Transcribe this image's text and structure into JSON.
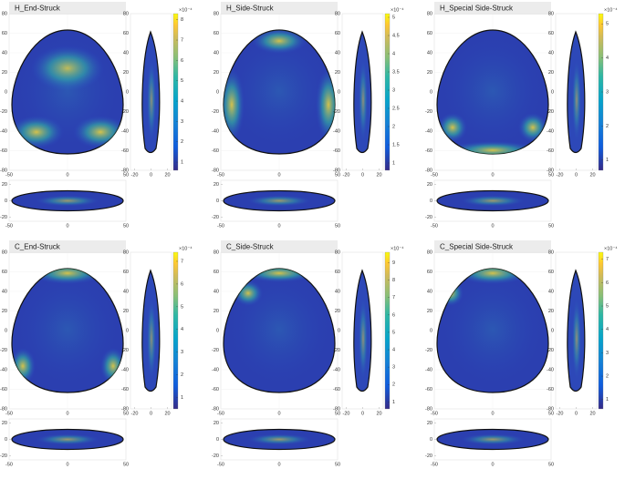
{
  "panels": [
    {
      "title": "H_End-Struck",
      "colorbar": {
        "label": "×10⁻⁴",
        "lim": [
          0.6,
          8.3
        ],
        "ticks": [
          1,
          2,
          3,
          4,
          5,
          6,
          7,
          8
        ]
      }
    },
    {
      "title": "H_Side-Struck",
      "colorbar": {
        "label": "×10⁻⁴",
        "lim": [
          0.8,
          5.1
        ],
        "ticks": [
          1,
          1.5,
          2,
          2.5,
          3,
          3.5,
          4,
          4.5,
          5
        ]
      }
    },
    {
      "title": "H_Special Side-Struck",
      "colorbar": {
        "label": "×10⁻⁴",
        "lim": [
          0.7,
          5.3
        ],
        "ticks": [
          1,
          2,
          3,
          4,
          5
        ]
      }
    },
    {
      "title": "C_End-Struck",
      "colorbar": {
        "label": "×10⁻⁴",
        "lim": [
          0.5,
          7.4
        ],
        "ticks": [
          1,
          2,
          3,
          4,
          5,
          6,
          7
        ]
      }
    },
    {
      "title": "C_Side-Struck",
      "colorbar": {
        "label": "×10⁻⁴",
        "lim": [
          0.6,
          9.6
        ],
        "ticks": [
          1,
          2,
          3,
          4,
          5,
          6,
          7,
          8,
          9
        ]
      }
    },
    {
      "title": "C_Special Side-Struck",
      "colorbar": {
        "label": "×10⁻⁴",
        "lim": [
          0.6,
          7.3
        ],
        "ticks": [
          1,
          2,
          3,
          4,
          5,
          6,
          7
        ]
      }
    }
  ],
  "axes": {
    "main_x": [
      -50,
      0,
      50
    ],
    "main_xlim": [
      -50,
      50
    ],
    "main_y": [
      80,
      60,
      40,
      20,
      0,
      -20,
      -40,
      -60,
      -80
    ],
    "main_ylim": [
      -80,
      80
    ],
    "side_x": [
      -20,
      0,
      20
    ],
    "side_xlim": [
      -25,
      25
    ],
    "bottom_y": [
      20,
      0,
      -20
    ],
    "bottom_ylim": [
      -25,
      25
    ]
  }
}
